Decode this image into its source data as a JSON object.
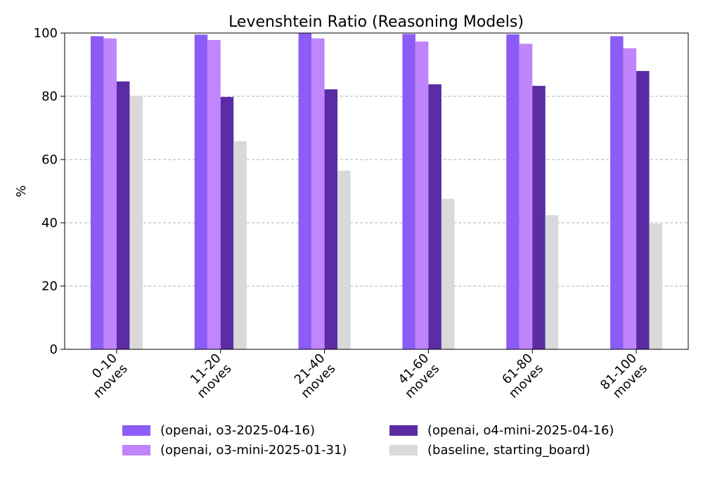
{
  "chart_data": {
    "type": "bar",
    "title": "Levenshtein Ratio (Reasoning Models)",
    "xlabel": "",
    "ylabel": "%",
    "ylim": [
      0,
      100
    ],
    "yticks": [
      0,
      20,
      40,
      60,
      80,
      100
    ],
    "grid": true,
    "legend_position": "bottom",
    "categories": [
      "0-10\nmoves",
      "11-20\nmoves",
      "21-40\nmoves",
      "41-60\nmoves",
      "61-80\nmoves",
      "81-100\nmoves"
    ],
    "series": [
      {
        "name": "(openai, o3-2025-04-16)",
        "color": "#8b5cf6",
        "values": [
          99.0,
          99.5,
          100.0,
          99.7,
          99.6,
          99.0
        ]
      },
      {
        "name": "(openai, o3-mini-2025-01-31)",
        "color": "#c084fc",
        "values": [
          98.3,
          97.8,
          98.3,
          97.3,
          96.6,
          95.2
        ]
      },
      {
        "name": "(openai, o4-mini-2025-04-16)",
        "color": "#5b2ca4",
        "values": [
          84.7,
          79.8,
          82.2,
          83.8,
          83.3,
          88.0
        ]
      },
      {
        "name": "(baseline, starting_board)",
        "color": "#d9d9d9",
        "values": [
          80.0,
          65.8,
          56.5,
          47.6,
          42.4,
          39.7
        ]
      }
    ]
  }
}
